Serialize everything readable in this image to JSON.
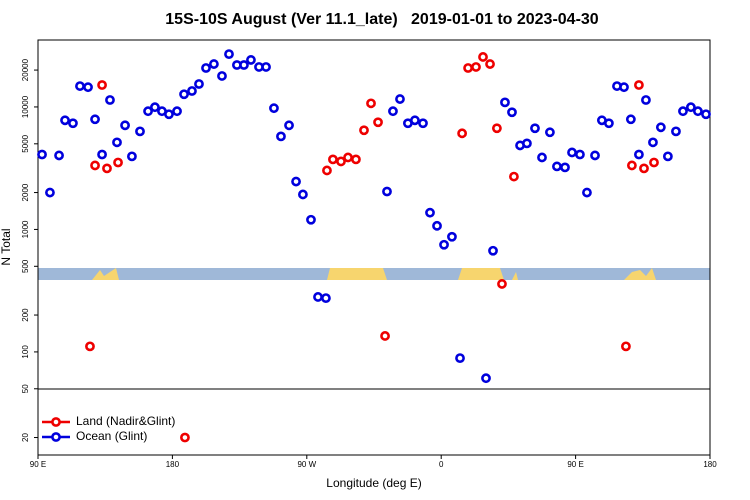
{
  "chart_data": {
    "type": "scatter",
    "title": "15S-10S August (Ver 11.1_late)   2019-01-01 to 2023-04-30",
    "x_label": "Longitude (deg E)",
    "y_label": "N Total",
    "log_y": true,
    "legend": "lower left",
    "xlim": [
      90,
      540
    ],
    "xticks": [
      {
        "value": 90,
        "label": "90 E"
      },
      {
        "value": 180,
        "label": "180"
      },
      {
        "value": 270,
        "label": "90 W"
      },
      {
        "value": 360,
        "label": "0"
      },
      {
        "value": 450,
        "label": "90 E"
      },
      {
        "value": 540,
        "label": "180"
      }
    ],
    "ylim": [
      14.4,
      35200
    ],
    "yticks": [
      20000,
      10000,
      5000,
      2000,
      1000,
      500,
      200,
      100,
      50,
      20
    ],
    "series": [
      {
        "name": "Land (Nadir&Glint)",
        "color": "#ee0000",
        "x": [
          124.8,
          128.2,
          132.9,
          136.2,
          143.6,
          188.4,
          283.5,
          287.5,
          292.9,
          297.6,
          302.9,
          308.3,
          313.0,
          317.7,
          322.4,
          374.0,
          378.0,
          383.3,
          388.0,
          392.7,
          397.3,
          400.7,
          408.7,
          483.7,
          487.7,
          492.4,
          495.8,
          502.5
        ],
        "values": [
          111,
          3330,
          15100,
          3150,
          3520,
          20,
          3030,
          3730,
          3590,
          3870,
          3730,
          6450,
          10700,
          7500,
          135,
          6090,
          20800,
          21200,
          25600,
          22400,
          6700,
          359,
          2700,
          111,
          3330,
          15100,
          3150,
          3520
        ]
      },
      {
        "name": "Ocean (Glint)",
        "color": "#0000dd",
        "x": [
          92.7,
          98.0,
          104.1,
          108.1,
          113.4,
          118.1,
          123.5,
          128.2,
          132.9,
          138.2,
          142.9,
          148.3,
          152.9,
          158.3,
          163.7,
          168.3,
          173.0,
          177.7,
          183.1,
          187.8,
          193.1,
          197.8,
          202.5,
          207.8,
          213.2,
          217.9,
          223.2,
          227.9,
          232.6,
          238.0,
          242.7,
          248.0,
          252.7,
          258.1,
          262.8,
          267.4,
          272.8,
          277.5,
          282.8,
          323.7,
          327.7,
          332.4,
          337.7,
          342.4,
          347.8,
          352.5,
          357.2,
          361.9,
          367.2,
          372.6,
          390.0,
          394.7,
          402.7,
          407.4,
          412.8,
          417.4,
          422.8,
          427.5,
          432.8,
          437.5,
          442.9,
          447.6,
          452.9,
          457.6,
          463.0,
          467.6,
          472.3,
          477.7,
          482.4,
          487.0,
          492.4,
          497.1,
          501.8,
          507.1,
          511.8,
          517.2,
          521.9,
          527.2,
          531.9,
          537.3
        ],
        "values": [
          4090,
          2000,
          4020,
          7780,
          7360,
          14800,
          14500,
          7930,
          4090,
          11400,
          5140,
          7080,
          3950,
          6320,
          9230,
          9950,
          9230,
          8720,
          9230,
          12700,
          13500,
          15400,
          20800,
          22400,
          17900,
          27000,
          22000,
          22000,
          24200,
          21200,
          21200,
          9770,
          5750,
          7080,
          2460,
          1930,
          1200,
          281,
          275,
          2040,
          9230,
          11600,
          7360,
          7780,
          7360,
          1370,
          1070,
          750,
          871,
          89,
          61,
          670,
          10900,
          9050,
          4850,
          5040,
          6700,
          3870,
          6210,
          3270,
          3210,
          4250,
          4090,
          2000,
          4020,
          7780,
          7360,
          14800,
          14500,
          7930,
          4090,
          11400,
          5140,
          6820,
          3950,
          6320,
          9230,
          9950,
          9230,
          8720
        ]
      }
    ]
  }
}
